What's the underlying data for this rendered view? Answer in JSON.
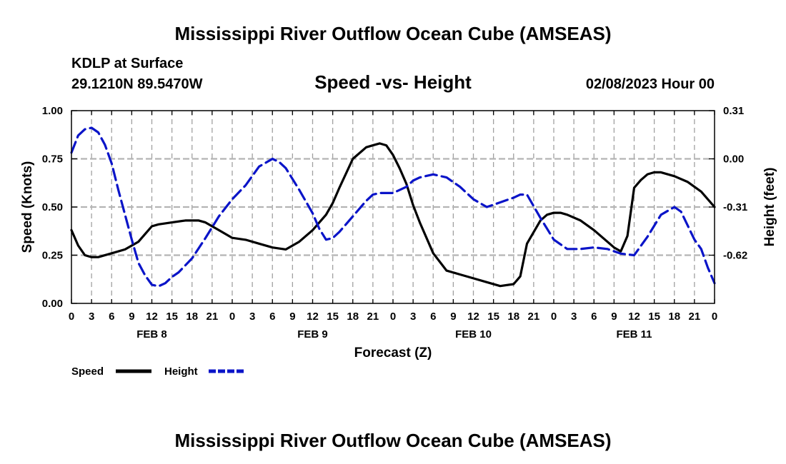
{
  "page_title": "Mississippi River Outflow Ocean Cube (AMSEAS)",
  "page_title_repeat": "Mississippi River Outflow Ocean Cube (AMSEAS)",
  "station": {
    "name": "KDLP at Surface",
    "coords": "29.1210N  89.5470W",
    "datetime": "02/08/2023 Hour 00"
  },
  "colors": {
    "speed": "#000000",
    "height": "#0a14c8",
    "grid": "#a0a0a0"
  },
  "chart_data": {
    "type": "line",
    "title": "Speed -vs- Height",
    "xlabel": "Forecast (Z)",
    "ylabel": "Speed (Knots)",
    "y2label": "Height (feet)",
    "xlim": [
      0,
      96
    ],
    "ylim": [
      0,
      1
    ],
    "y2lim": [
      -0.93,
      0.31
    ],
    "x_ticks": [
      0,
      3,
      6,
      9,
      12,
      15,
      18,
      21,
      24,
      27,
      30,
      33,
      36,
      39,
      42,
      45,
      48,
      51,
      54,
      57,
      60,
      63,
      66,
      69,
      72,
      75,
      78,
      81,
      84,
      87,
      90,
      93,
      96
    ],
    "x_tick_labels": [
      "0",
      "3",
      "6",
      "9",
      "12",
      "15",
      "18",
      "21",
      "0",
      "3",
      "6",
      "9",
      "12",
      "15",
      "18",
      "21",
      "0",
      "3",
      "6",
      "9",
      "12",
      "15",
      "18",
      "21",
      "0",
      "3",
      "6",
      "9",
      "12",
      "15",
      "18",
      "21",
      "0"
    ],
    "day_labels": [
      {
        "x": 12,
        "label": "FEB 8"
      },
      {
        "x": 36,
        "label": "FEB 9"
      },
      {
        "x": 60,
        "label": "FEB 10"
      },
      {
        "x": 84,
        "label": "FEB 11"
      }
    ],
    "y_ticks": [
      0,
      0.25,
      0.5,
      0.75,
      1.0
    ],
    "y_tick_labels": [
      "0.00",
      "0.25",
      "0.50",
      "0.75",
      "1.00"
    ],
    "y2_ticks": [
      0.31,
      0.0,
      -0.31,
      -0.62
    ],
    "y2_tick_labels": [
      "0.31",
      "0.00",
      "-0.31",
      "-0.62"
    ],
    "series": [
      {
        "name": "Speed",
        "axis": "left",
        "style": "solid",
        "x": [
          0,
          1,
          2,
          3,
          4,
          6,
          8,
          10,
          11,
          12,
          13,
          15,
          17,
          18,
          19,
          20,
          21,
          22,
          24,
          26,
          28,
          30,
          32,
          33,
          34,
          36,
          38,
          39,
          40,
          42,
          44,
          45,
          46,
          47,
          48,
          49,
          50,
          51,
          52,
          54,
          56,
          58,
          60,
          62,
          64,
          66,
          67,
          68,
          70,
          71,
          72,
          73,
          74,
          76,
          78,
          80,
          81,
          82,
          83,
          84,
          85,
          86,
          87,
          88,
          90,
          92,
          94,
          96
        ],
        "values": [
          0.38,
          0.3,
          0.25,
          0.24,
          0.24,
          0.26,
          0.28,
          0.32,
          0.36,
          0.4,
          0.41,
          0.42,
          0.43,
          0.43,
          0.43,
          0.42,
          0.4,
          0.38,
          0.34,
          0.33,
          0.31,
          0.29,
          0.28,
          0.3,
          0.32,
          0.38,
          0.46,
          0.52,
          0.6,
          0.75,
          0.81,
          0.82,
          0.83,
          0.82,
          0.77,
          0.7,
          0.62,
          0.51,
          0.42,
          0.26,
          0.17,
          0.15,
          0.13,
          0.11,
          0.09,
          0.1,
          0.14,
          0.31,
          0.43,
          0.46,
          0.47,
          0.47,
          0.46,
          0.43,
          0.38,
          0.32,
          0.29,
          0.27,
          0.35,
          0.6,
          0.64,
          0.67,
          0.68,
          0.68,
          0.66,
          0.63,
          0.58,
          0.5
        ]
      },
      {
        "name": "Height",
        "axis": "right",
        "style": "dashed",
        "x": [
          0,
          1,
          2,
          3,
          4,
          5,
          6,
          7,
          8,
          9,
          10,
          11,
          12,
          13,
          14,
          15,
          16,
          18,
          20,
          22,
          24,
          26,
          28,
          30,
          31,
          32,
          34,
          36,
          37,
          38,
          39,
          40,
          42,
          44,
          45,
          46,
          48,
          50,
          51,
          52,
          54,
          56,
          58,
          60,
          62,
          64,
          66,
          67,
          68,
          70,
          72,
          74,
          76,
          78,
          80,
          82,
          84,
          86,
          88,
          90,
          91,
          92,
          93,
          94,
          95,
          96
        ],
        "values": [
          0.04,
          0.15,
          0.19,
          0.2,
          0.17,
          0.09,
          -0.03,
          -0.2,
          -0.36,
          -0.52,
          -0.67,
          -0.75,
          -0.81,
          -0.82,
          -0.8,
          -0.76,
          -0.73,
          -0.64,
          -0.51,
          -0.37,
          -0.26,
          -0.17,
          -0.05,
          0.0,
          -0.02,
          -0.06,
          -0.2,
          -0.35,
          -0.45,
          -0.52,
          -0.51,
          -0.47,
          -0.37,
          -0.27,
          -0.23,
          -0.22,
          -0.22,
          -0.18,
          -0.14,
          -0.12,
          -0.1,
          -0.12,
          -0.18,
          -0.26,
          -0.31,
          -0.28,
          -0.25,
          -0.23,
          -0.23,
          -0.38,
          -0.52,
          -0.58,
          -0.58,
          -0.57,
          -0.58,
          -0.61,
          -0.62,
          -0.5,
          -0.36,
          -0.31,
          -0.34,
          -0.43,
          -0.52,
          -0.58,
          -0.7,
          -0.8
        ]
      }
    ],
    "legend": {
      "position": "bottom-left",
      "items": [
        {
          "name": "Speed",
          "color": "#000000",
          "style": "solid"
        },
        {
          "name": "Height",
          "color": "#0a14c8",
          "style": "dashed"
        }
      ]
    }
  }
}
